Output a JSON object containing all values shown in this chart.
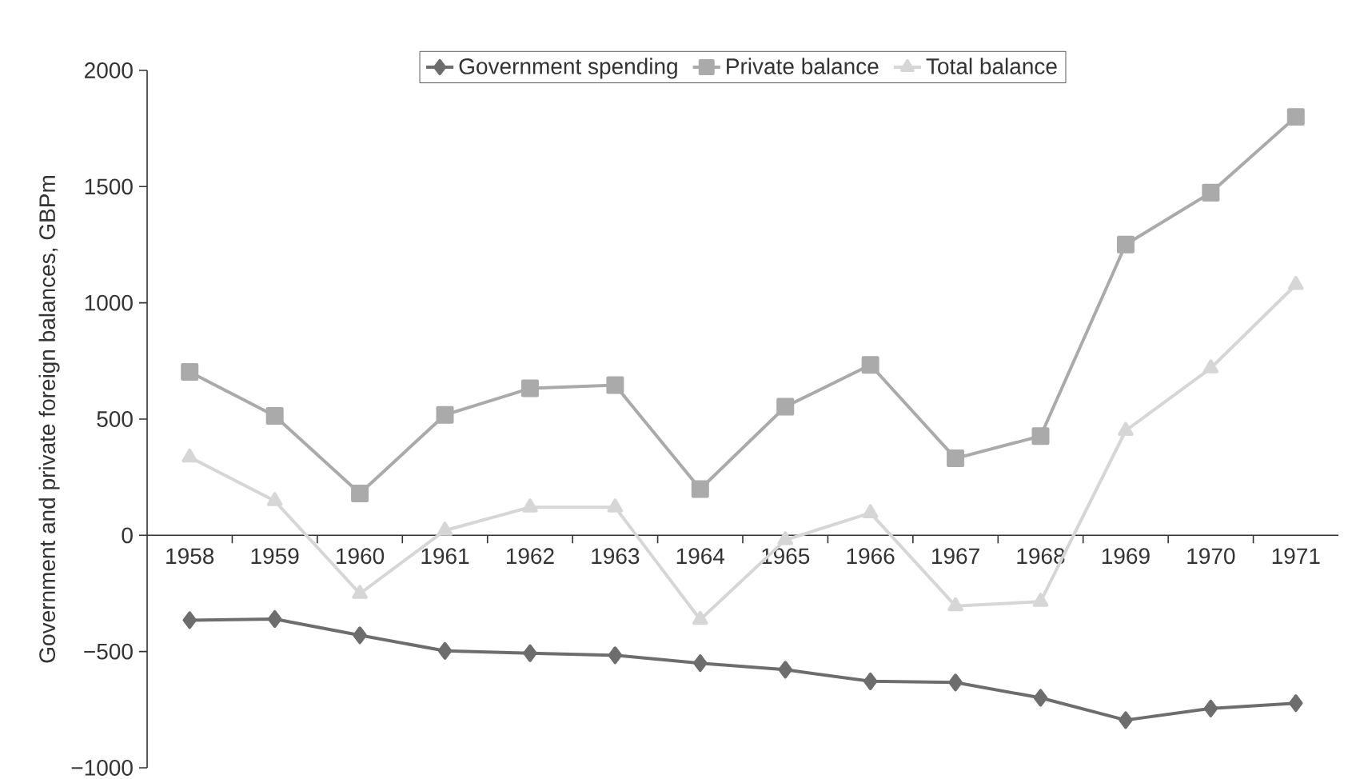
{
  "chart_data": {
    "type": "line",
    "ylabel": "Government and private foreign balances, GBPm",
    "categories": [
      "1958",
      "1959",
      "1960",
      "1961",
      "1962",
      "1963",
      "1964",
      "1965",
      "1966",
      "1967",
      "1968",
      "1969",
      "1970",
      "1971"
    ],
    "series": [
      {
        "name": "Government spending",
        "color": "#6d6d6d",
        "marker": "diamond",
        "values": [
          -365,
          -360,
          -430,
          -497,
          -507,
          -516,
          -550,
          -578,
          -628,
          -633,
          -699,
          -795,
          -745,
          -722
        ]
      },
      {
        "name": "Private balance",
        "color": "#aaaaaa",
        "marker": "square",
        "values": [
          703,
          514,
          180,
          518,
          632,
          646,
          199,
          553,
          733,
          331,
          427,
          1251,
          1474,
          1800
        ]
      },
      {
        "name": "Total balance",
        "color": "#d6d6d6",
        "marker": "triangle",
        "values": [
          336,
          148,
          -251,
          21,
          121,
          121,
          -363,
          -20,
          96,
          -304,
          -285,
          450,
          719,
          1078
        ]
      }
    ],
    "ylim": [
      -1000,
      2000
    ],
    "yticks": [
      {
        "value": -1000,
        "label": "−1000"
      },
      {
        "value": -500,
        "label": "−500"
      },
      0,
      500,
      1000,
      1500,
      2000
    ],
    "legend": "top",
    "grid": false,
    "line_style": "solid"
  }
}
